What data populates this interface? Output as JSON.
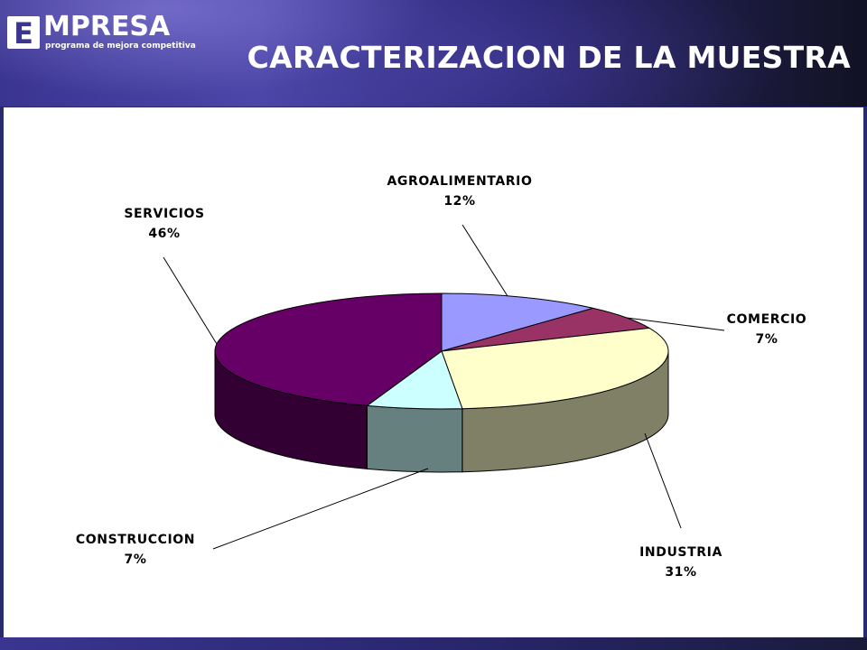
{
  "header": {
    "logo_text": "MPRESA",
    "logo_letter": "E",
    "logo_subtitle": "programa de mejora competitiva",
    "title": "CARACTERIZACION DE LA MUESTRA"
  },
  "chart_data": {
    "type": "pie",
    "title": "",
    "slices": [
      {
        "label": "AGROALIMENTARIO",
        "value": 12,
        "display": "12%",
        "top": "#9999ff",
        "side": "#6b6bb3"
      },
      {
        "label": "COMERCIO",
        "value": 7,
        "display": "7%",
        "top": "#993366",
        "side": "#6b2447"
      },
      {
        "label": "INDUSTRIA",
        "value": 31,
        "display": "31%",
        "top": "#ffffcc",
        "side": "#808066"
      },
      {
        "label": "CONSTRUCCION",
        "value": 7,
        "display": "7%",
        "top": "#ccffff",
        "side": "#668080"
      },
      {
        "label": "SERVICIOS",
        "value": 46,
        "display": "46%",
        "top": "#660066",
        "side": "#330033"
      }
    ],
    "legend": "none"
  }
}
